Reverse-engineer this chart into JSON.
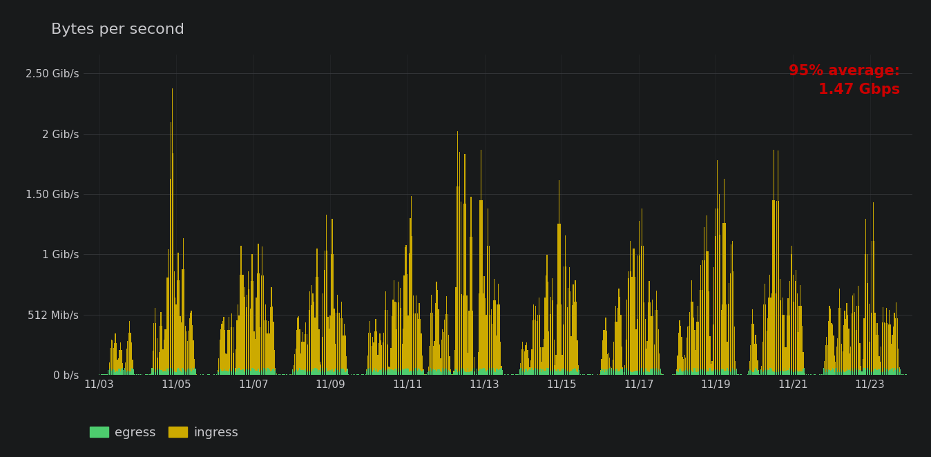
{
  "title": "Bytes per second",
  "annotation": "95% average:\n1.47 Gbps",
  "annotation_color": "#cc0000",
  "bg_color": "#181a1b",
  "axes_bg_color": "#181a1b",
  "grid_color": "#3a3c40",
  "text_color": "#c8c8cc",
  "egress_color": "#4dcc6e",
  "ingress_color": "#ccaa00",
  "x_labels": [
    "11/03",
    "11/05",
    "11/07",
    "11/09",
    "11/11",
    "11/13",
    "11/15",
    "11/17",
    "11/19",
    "11/21",
    "11/23"
  ],
  "x_tick_positions": [
    3,
    5,
    7,
    9,
    11,
    13,
    15,
    17,
    19,
    21,
    23
  ],
  "y_ticks": [
    0,
    536870912,
    1073741824,
    1610612736,
    2147483648,
    2684354560
  ],
  "y_tick_labels": [
    "0 b/s",
    "512 Mib/s",
    "1 Gib/s",
    "1.50 Gib/s",
    "2 Gib/s",
    "2.50 Gib/s"
  ],
  "ylim": [
    0,
    2850000000
  ],
  "date_start": 3.0,
  "date_end": 24.0
}
